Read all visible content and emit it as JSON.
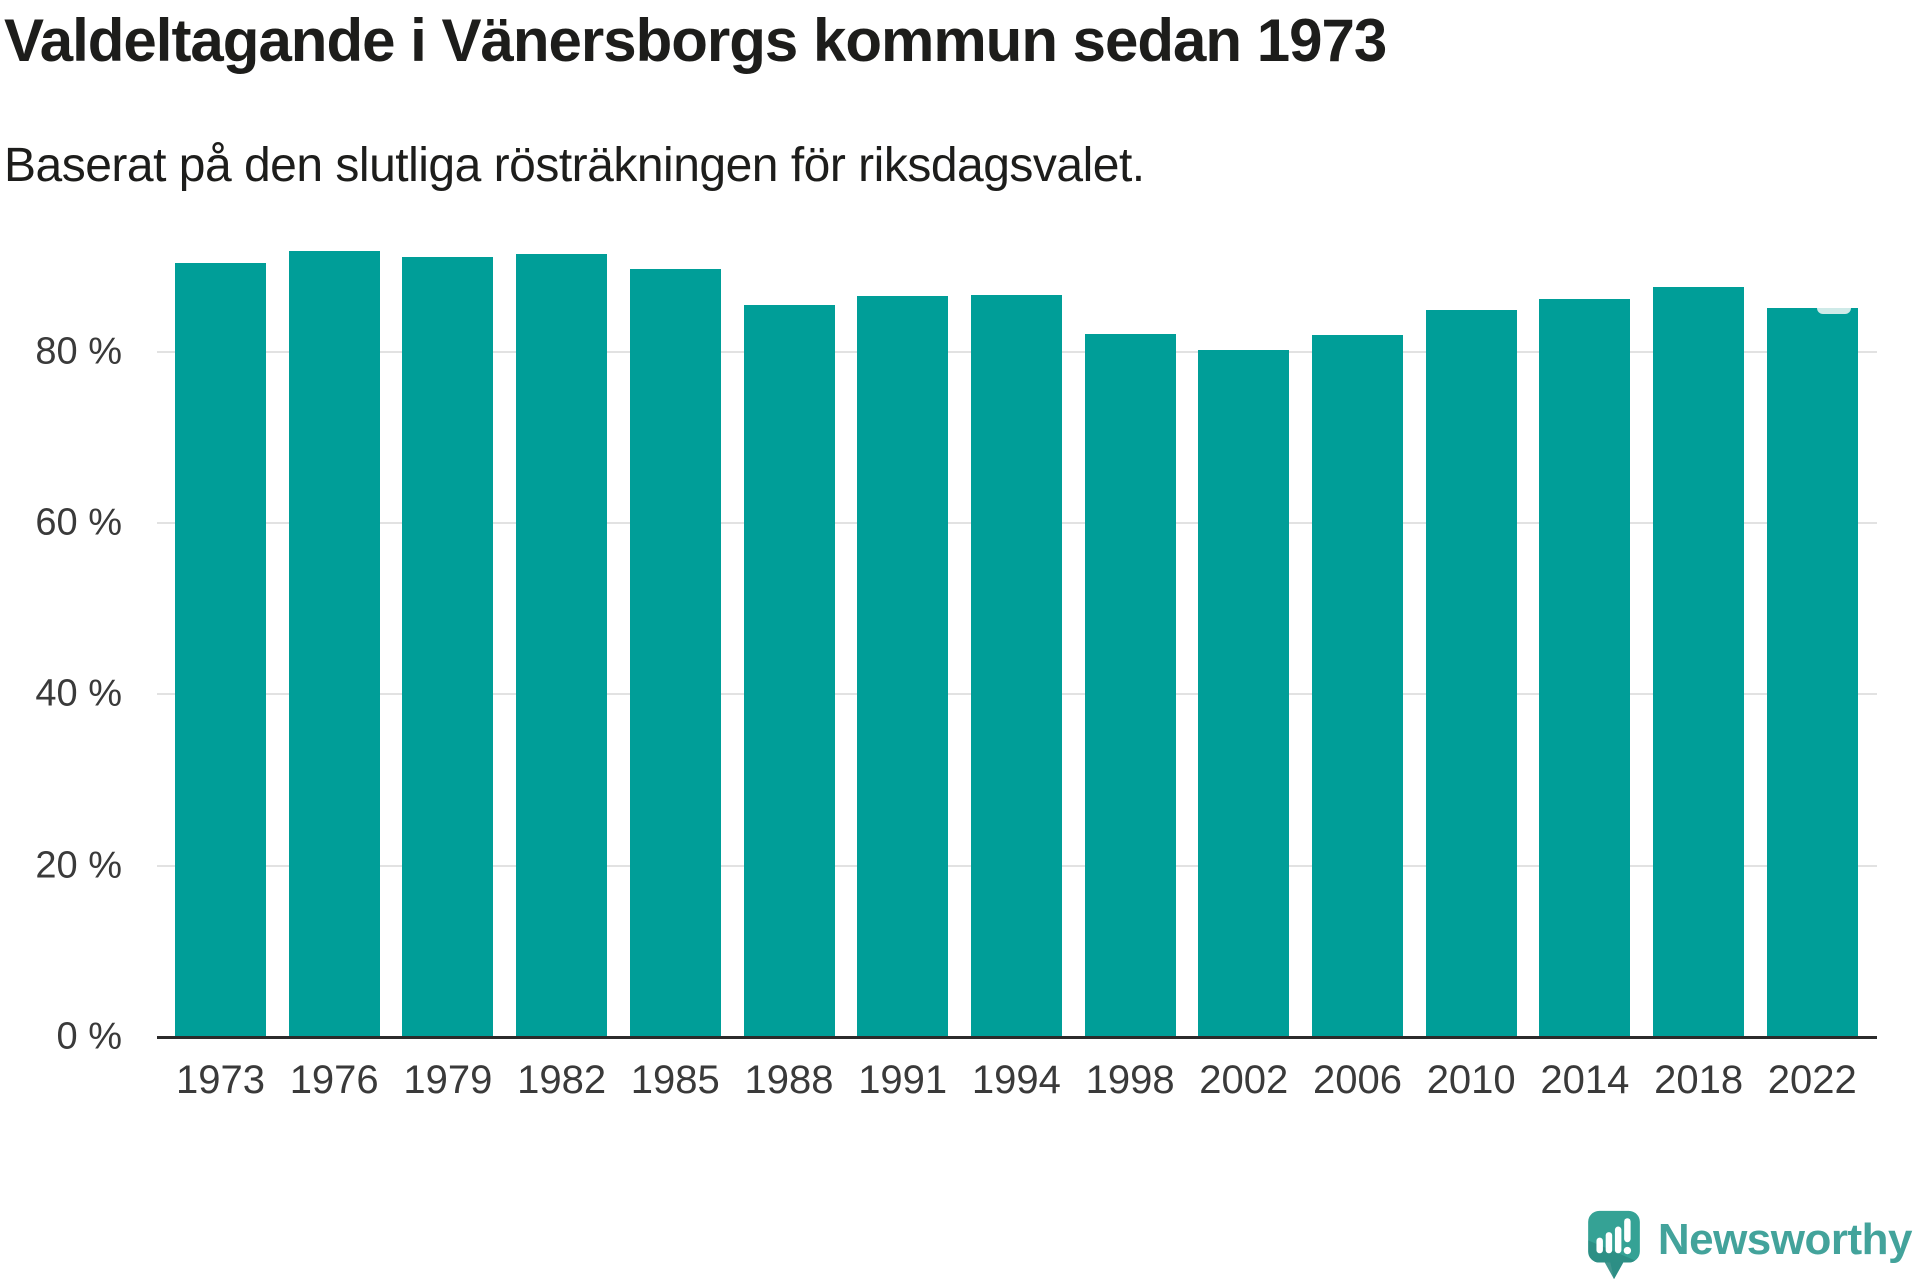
{
  "header": {
    "title": "Valdeltagande i Vänersborgs kommun sedan 1973",
    "subtitle": "Baserat på den slutliga rösträkningen för riksdagsvalet."
  },
  "chart_data": {
    "type": "bar",
    "title": "Valdeltagande i Vänersborgs kommun sedan 1973",
    "subtitle": "Baserat på den slutliga rösträkningen för riksdagsvalet.",
    "categories": [
      "1973",
      "1976",
      "1979",
      "1982",
      "1985",
      "1988",
      "1991",
      "1994",
      "1998",
      "2002",
      "2006",
      "2010",
      "2014",
      "2018",
      "2022"
    ],
    "values": [
      90.4,
      91.7,
      91.0,
      91.4,
      89.7,
      85.4,
      86.5,
      86.6,
      82.1,
      80.2,
      82.0,
      84.9,
      86.2,
      87.6,
      85.1
    ],
    "unit": "%",
    "xlabel": "",
    "ylabel": "",
    "ylim": [
      0,
      100
    ],
    "yticks": [
      {
        "value": 0,
        "label": "0 %"
      },
      {
        "value": 20,
        "label": "20 %"
      },
      {
        "value": 40,
        "label": "40 %"
      },
      {
        "value": 60,
        "label": "60 %"
      },
      {
        "value": 80,
        "label": "80 %"
      }
    ],
    "grid": true,
    "legend": false,
    "bar_color": "#009e98",
    "annotations": [
      {
        "category": "2022",
        "type": "notch",
        "secondary_value": 84.6,
        "note": "small lighter dip at top-right of 2022 bar"
      }
    ]
  },
  "footer": {
    "brand": "Newsworthy",
    "logo_icon": "newsworthy-speech-bubble-chart-icon"
  },
  "colors": {
    "bar": "#009e98",
    "grid": "#e2e2e2",
    "axis": "#2b2b2b",
    "title_text": "#1d1d1b",
    "tick_text": "#3a3a3a",
    "notch": "#cfeae8",
    "logo_teal": "#43a39b",
    "logo_bubble": "#35a295",
    "logo_bubble_shade": "#2c8c83"
  }
}
